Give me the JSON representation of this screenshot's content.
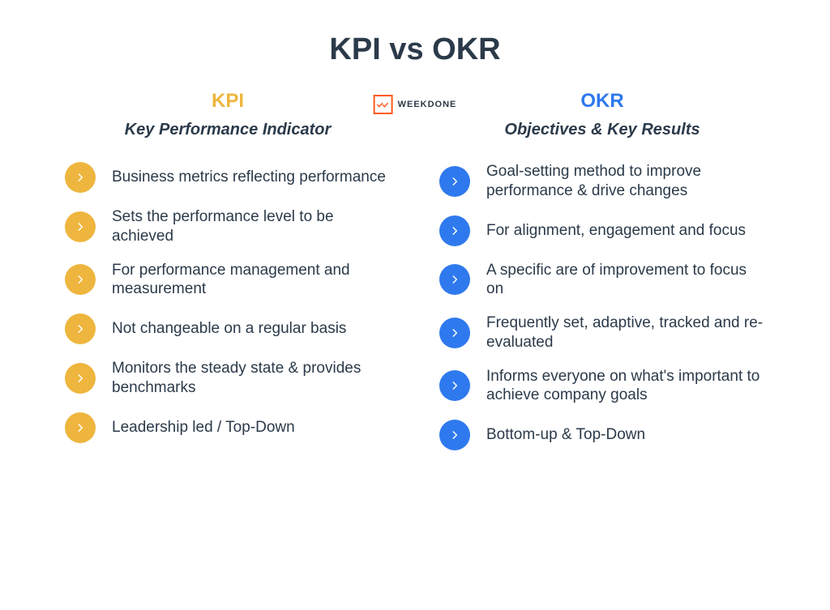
{
  "title": "KPI vs OKR",
  "title_color": "#2b3a4a",
  "logo": {
    "label": "WEEKDONE",
    "border_color": "#ff5a1f",
    "check_color": "#ff5a1f"
  },
  "left": {
    "heading": "KPI",
    "heading_color": "#eeb63e",
    "subheading": "Key Performance Indicator",
    "subheading_color": "#2b3a4a",
    "bullet_color": "#eeb63e",
    "text_color": "#2b3a4a",
    "items": [
      "Business metrics reflecting performance",
      "Sets the performance level to be achieved",
      "For performance management and measurement",
      "Not changeable on a regular basis",
      "Monitors the steady state & provides benchmarks",
      "Leadership led  / Top-Down"
    ]
  },
  "right": {
    "heading": "OKR",
    "heading_color": "#2f79ee",
    "subheading": "Objectives & Key Results",
    "subheading_color": "#2b3a4a",
    "bullet_color": "#2f79ee",
    "text_color": "#2b3a4a",
    "items": [
      "Goal-setting method to improve performance & drive changes",
      "For alignment, engagement and focus",
      "A specific are of improvement to focus on",
      "Frequently set, adaptive, tracked and re-evaluated",
      "Informs everyone on what's important to achieve company goals",
      "Bottom-up & Top-Down"
    ]
  }
}
